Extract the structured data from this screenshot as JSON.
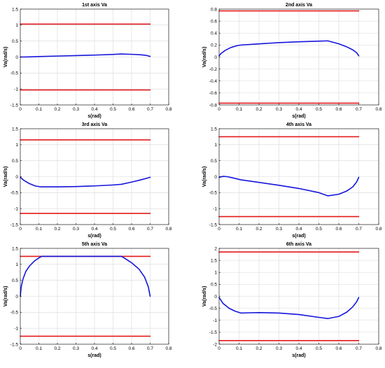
{
  "chart_data": [
    {
      "type": "line",
      "title": "1st axis Va",
      "xlabel": "s(rad)",
      "ylabel": "Va(rad/s)",
      "xlim": [
        0,
        0.8
      ],
      "ylim": [
        -1.5,
        1.5
      ],
      "xticks": [
        0,
        0.1,
        0.2,
        0.3,
        0.4,
        0.5,
        0.6,
        0.7,
        0.8
      ],
      "yticks": [
        -1.5,
        -1,
        -0.5,
        0,
        0.5,
        1,
        1.5
      ],
      "xtick_labels": [
        "0",
        "0.1",
        "0.2",
        "0.3",
        "0.4",
        "0.5",
        "0.6",
        "0.7",
        "0.8"
      ],
      "ytick_labels": [
        "-1.5",
        "-1",
        "-0.5",
        "0",
        "0.5",
        "1",
        "1.5"
      ],
      "grid": true,
      "series": [
        {
          "color": "#e41a1c",
          "x": [
            0,
            0.7
          ],
          "y": [
            1.03,
            1.03
          ]
        },
        {
          "color": "#e41a1c",
          "x": [
            0,
            0.7
          ],
          "y": [
            -1.03,
            -1.03
          ]
        },
        {
          "color": "#1515dd",
          "x": [
            0,
            0.05,
            0.1,
            0.2,
            0.3,
            0.4,
            0.5,
            0.54,
            0.6,
            0.65,
            0.68,
            0.7
          ],
          "y": [
            0,
            0.005,
            0.015,
            0.03,
            0.045,
            0.06,
            0.08,
            0.095,
            0.085,
            0.07,
            0.05,
            0.02
          ]
        }
      ]
    },
    {
      "type": "line",
      "title": "2nd axis Va",
      "xlabel": "s(rad)",
      "ylabel": "Va(rad/s)",
      "xlim": [
        0,
        0.8
      ],
      "ylim": [
        -0.8,
        0.8
      ],
      "xticks": [
        0,
        0.1,
        0.2,
        0.3,
        0.4,
        0.5,
        0.6,
        0.7,
        0.8
      ],
      "yticks": [
        -0.8,
        -0.6,
        -0.4,
        -0.2,
        0,
        0.2,
        0.4,
        0.6,
        0.8
      ],
      "xtick_labels": [
        "0",
        "0.1",
        "0.2",
        "0.3",
        "0.4",
        "0.5",
        "0.6",
        "0.7",
        "0.8"
      ],
      "ytick_labels": [
        "-0.8",
        "-0.6",
        "-0.4",
        "-0.2",
        "0",
        "0.2",
        "0.4",
        "0.6",
        "0.8"
      ],
      "grid": true,
      "series": [
        {
          "color": "#e41a1c",
          "x": [
            0,
            0.7
          ],
          "y": [
            0.77,
            0.77
          ]
        },
        {
          "color": "#e41a1c",
          "x": [
            0,
            0.7
          ],
          "y": [
            -0.77,
            -0.77
          ]
        },
        {
          "color": "#1515dd",
          "x": [
            0,
            0.01,
            0.03,
            0.06,
            0.09,
            0.11,
            0.2,
            0.3,
            0.4,
            0.5,
            0.545,
            0.6,
            0.64,
            0.67,
            0.69,
            0.7
          ],
          "y": [
            0.02,
            0.06,
            0.11,
            0.16,
            0.19,
            0.2,
            0.22,
            0.24,
            0.255,
            0.265,
            0.27,
            0.22,
            0.17,
            0.12,
            0.07,
            0.02
          ]
        }
      ]
    },
    {
      "type": "line",
      "title": "3rd axis Va",
      "xlabel": "s(rad)",
      "ylabel": "Va(rad/s)",
      "xlim": [
        0,
        0.8
      ],
      "ylim": [
        -1.5,
        1.5
      ],
      "xticks": [
        0,
        0.1,
        0.2,
        0.3,
        0.4,
        0.5,
        0.6,
        0.7,
        0.8
      ],
      "yticks": [
        -1.5,
        -1,
        -0.5,
        0,
        0.5,
        1,
        1.5
      ],
      "xtick_labels": [
        "0",
        "0.1",
        "0.2",
        "0.3",
        "0.4",
        "0.5",
        "0.6",
        "0.7",
        "0.8"
      ],
      "ytick_labels": [
        "-1.5",
        "-1",
        "-0.5",
        "0",
        "0.5",
        "1",
        "1.5"
      ],
      "grid": true,
      "series": [
        {
          "color": "#e41a1c",
          "x": [
            0,
            0.7
          ],
          "y": [
            1.15,
            1.15
          ]
        },
        {
          "color": "#e41a1c",
          "x": [
            0,
            0.7
          ],
          "y": [
            -1.15,
            -1.15
          ]
        },
        {
          "color": "#1515dd",
          "x": [
            0,
            0.02,
            0.05,
            0.08,
            0.11,
            0.2,
            0.3,
            0.4,
            0.5,
            0.545,
            0.6,
            0.65,
            0.7
          ],
          "y": [
            -0.02,
            -0.12,
            -0.22,
            -0.29,
            -0.32,
            -0.32,
            -0.31,
            -0.29,
            -0.26,
            -0.24,
            -0.17,
            -0.1,
            -0.02
          ]
        }
      ]
    },
    {
      "type": "line",
      "title": "4th axis Va",
      "xlabel": "s(rad)",
      "ylabel": "Va(rad/s)",
      "xlim": [
        0,
        0.8
      ],
      "ylim": [
        -1.5,
        1.5
      ],
      "xticks": [
        0,
        0.1,
        0.2,
        0.3,
        0.4,
        0.5,
        0.6,
        0.7,
        0.8
      ],
      "yticks": [
        -1.5,
        -1,
        -0.5,
        0,
        0.5,
        1,
        1.5
      ],
      "xtick_labels": [
        "0",
        "0.1",
        "0.2",
        "0.3",
        "0.4",
        "0.5",
        "0.6",
        "0.7",
        "0.8"
      ],
      "ytick_labels": [
        "-1.5",
        "-1",
        "-0.5",
        "0",
        "0.5",
        "1",
        "1.5"
      ],
      "grid": true,
      "series": [
        {
          "color": "#e41a1c",
          "x": [
            0,
            0.7
          ],
          "y": [
            1.25,
            1.25
          ]
        },
        {
          "color": "#e41a1c",
          "x": [
            0,
            0.7
          ],
          "y": [
            -1.25,
            -1.25
          ]
        },
        {
          "color": "#1515dd",
          "x": [
            0,
            0.02,
            0.04,
            0.07,
            0.11,
            0.2,
            0.3,
            0.4,
            0.5,
            0.545,
            0.6,
            0.64,
            0.67,
            0.69,
            0.7
          ],
          "y": [
            -0.02,
            0.01,
            0,
            -0.04,
            -0.1,
            -0.18,
            -0.27,
            -0.37,
            -0.5,
            -0.6,
            -0.55,
            -0.45,
            -0.32,
            -0.16,
            -0.02
          ]
        }
      ]
    },
    {
      "type": "line",
      "title": "5th axis Va",
      "xlabel": "s(rad)",
      "ylabel": "Va(rad/s)",
      "xlim": [
        0,
        0.8
      ],
      "ylim": [
        -1.5,
        1.5
      ],
      "xticks": [
        0,
        0.1,
        0.2,
        0.3,
        0.4,
        0.5,
        0.6,
        0.7,
        0.8
      ],
      "yticks": [
        -1.5,
        -1,
        -0.5,
        0,
        0.5,
        1,
        1.5
      ],
      "xtick_labels": [
        "0",
        "0.1",
        "0.2",
        "0.3",
        "0.4",
        "0.5",
        "0.6",
        "0.7",
        "0.8"
      ],
      "ytick_labels": [
        "-1.5",
        "-1",
        "-0.5",
        "0",
        "0.5",
        "1",
        "1.5"
      ],
      "grid": true,
      "series": [
        {
          "color": "#e41a1c",
          "x": [
            0,
            0.7
          ],
          "y": [
            1.25,
            1.25
          ]
        },
        {
          "color": "#e41a1c",
          "x": [
            0,
            0.7
          ],
          "y": [
            -1.25,
            -1.25
          ]
        },
        {
          "color": "#1515dd",
          "x": [
            0,
            0.005,
            0.015,
            0.03,
            0.05,
            0.075,
            0.1,
            0.115,
            0.545,
            0.56,
            0.6,
            0.64,
            0.67,
            0.69,
            0.7
          ],
          "y": [
            0,
            0.3,
            0.55,
            0.78,
            0.95,
            1.1,
            1.2,
            1.25,
            1.25,
            1.2,
            1.05,
            0.85,
            0.6,
            0.3,
            0
          ]
        }
      ]
    },
    {
      "type": "line",
      "title": "6th axis Va",
      "xlabel": "s(rad)",
      "ylabel": "Va(rad/s)",
      "xlim": [
        0,
        0.8
      ],
      "ylim": [
        -2,
        2
      ],
      "xticks": [
        0,
        0.1,
        0.2,
        0.3,
        0.4,
        0.5,
        0.6,
        0.7,
        0.8
      ],
      "yticks": [
        -2,
        -1.5,
        -1,
        -0.5,
        0,
        0.5,
        1,
        1.5,
        2
      ],
      "xtick_labels": [
        "0",
        "0.1",
        "0.2",
        "0.3",
        "0.4",
        "0.5",
        "0.6",
        "0.7",
        "0.8"
      ],
      "ytick_labels": [
        "-2",
        "-1.5",
        "-1",
        "-0.5",
        "0",
        "0.5",
        "1",
        "1.5",
        "2"
      ],
      "grid": true,
      "series": [
        {
          "color": "#e41a1c",
          "x": [
            0,
            0.7
          ],
          "y": [
            1.85,
            1.85
          ]
        },
        {
          "color": "#e41a1c",
          "x": [
            0,
            0.7
          ],
          "y": [
            -1.85,
            -1.85
          ]
        },
        {
          "color": "#1515dd",
          "x": [
            0,
            0.02,
            0.05,
            0.08,
            0.11,
            0.15,
            0.2,
            0.3,
            0.4,
            0.5,
            0.545,
            0.6,
            0.64,
            0.67,
            0.69,
            0.7
          ],
          "y": [
            -0.05,
            -0.3,
            -0.5,
            -0.62,
            -0.7,
            -0.69,
            -0.68,
            -0.7,
            -0.76,
            -0.88,
            -0.93,
            -0.84,
            -0.66,
            -0.44,
            -0.22,
            -0.05
          ]
        }
      ]
    }
  ]
}
